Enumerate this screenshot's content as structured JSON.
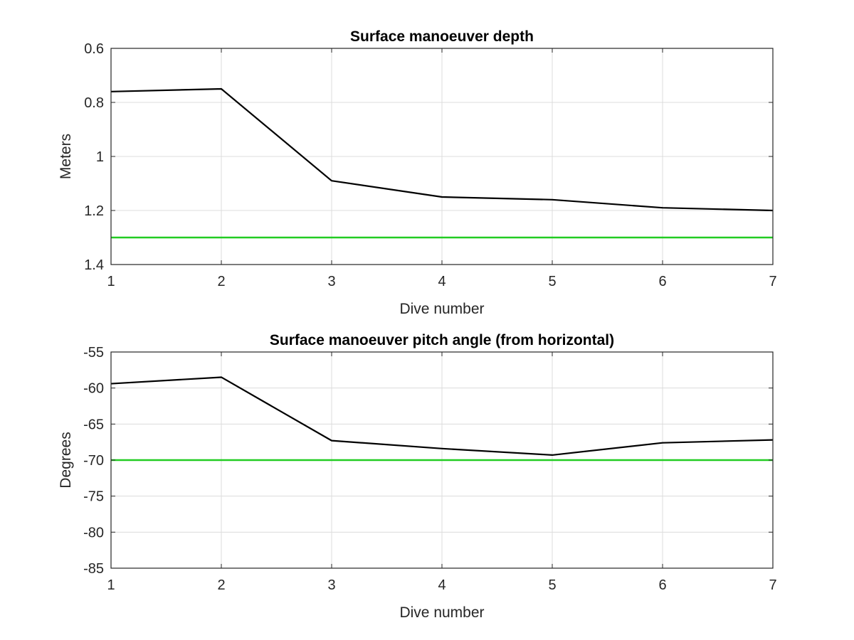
{
  "chart_data": [
    {
      "type": "line",
      "title": "Surface manoeuver depth",
      "xlabel": "Dive number",
      "ylabel": "Meters",
      "xlim": [
        1,
        7
      ],
      "ylim": [
        0.6,
        1.4
      ],
      "y_reversed": true,
      "grid": true,
      "x_ticks": [
        "1",
        "2",
        "3",
        "4",
        "5",
        "6",
        "7"
      ],
      "y_ticks": [
        "0.6",
        "0.8",
        "1",
        "1.2",
        "1.4"
      ],
      "x": [
        1,
        2,
        3,
        4,
        5,
        6,
        7
      ],
      "series": [
        {
          "values": [
            0.76,
            0.75,
            1.09,
            1.15,
            1.16,
            1.19,
            1.2
          ],
          "color": "#000000"
        }
      ],
      "reference_lines": [
        {
          "y": 1.3,
          "color": "#22cc22"
        }
      ]
    },
    {
      "type": "line",
      "title": "Surface manoeuver pitch angle (from horizontal)",
      "xlabel": "Dive number",
      "ylabel": "Degrees",
      "xlim": [
        1,
        7
      ],
      "ylim": [
        -85,
        -55
      ],
      "y_reversed": false,
      "grid": true,
      "x_ticks": [
        "1",
        "2",
        "3",
        "4",
        "5",
        "6",
        "7"
      ],
      "y_ticks": [
        "-55",
        "-60",
        "-65",
        "-70",
        "-75",
        "-80",
        "-85"
      ],
      "x": [
        1,
        2,
        3,
        4,
        5,
        6,
        7
      ],
      "series": [
        {
          "values": [
            -59.4,
            -58.5,
            -67.3,
            -68.4,
            -69.3,
            -67.6,
            -67.2
          ],
          "color": "#000000"
        }
      ],
      "reference_lines": [
        {
          "y": -70,
          "color": "#22cc22"
        }
      ]
    }
  ]
}
